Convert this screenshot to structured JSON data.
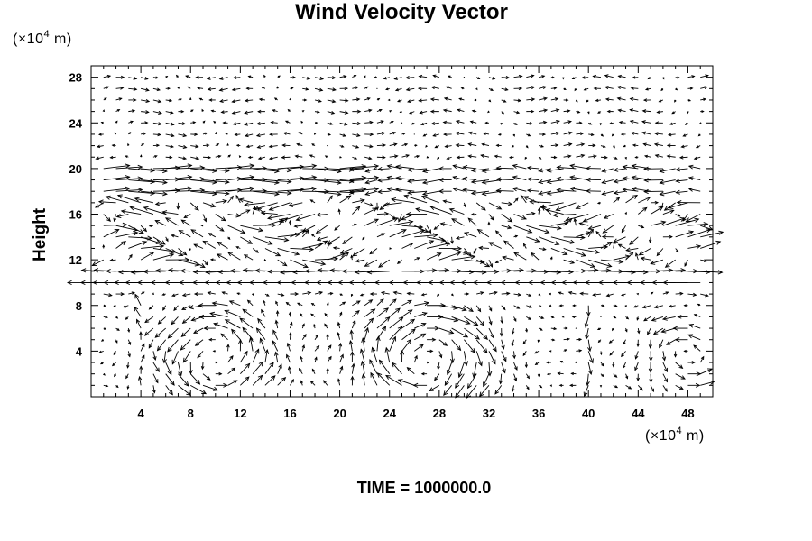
{
  "chart_data": {
    "type": "vector-field",
    "title": "Wind Velocity Vector",
    "ylabel": "Height",
    "x_unit": {
      "prefix": "(×10",
      "exponent": "4",
      "suffix": " m)"
    },
    "y_unit": {
      "prefix": "(×10",
      "exponent": "4",
      "suffix": " m)"
    },
    "xlim": [
      0,
      50
    ],
    "ylim": [
      0,
      29
    ],
    "x_ticks": [
      4,
      8,
      12,
      16,
      20,
      24,
      28,
      32,
      36,
      40,
      44,
      48
    ],
    "y_ticks": [
      4,
      8,
      12,
      16,
      20,
      24,
      28
    ],
    "x_minor_step": 1,
    "y_minor_step": 1,
    "grid": false,
    "colors": {
      "arrows": "#000000",
      "axes": "#000000",
      "background": "#ffffff"
    },
    "time_label": "TIME = 1000000.0"
  }
}
